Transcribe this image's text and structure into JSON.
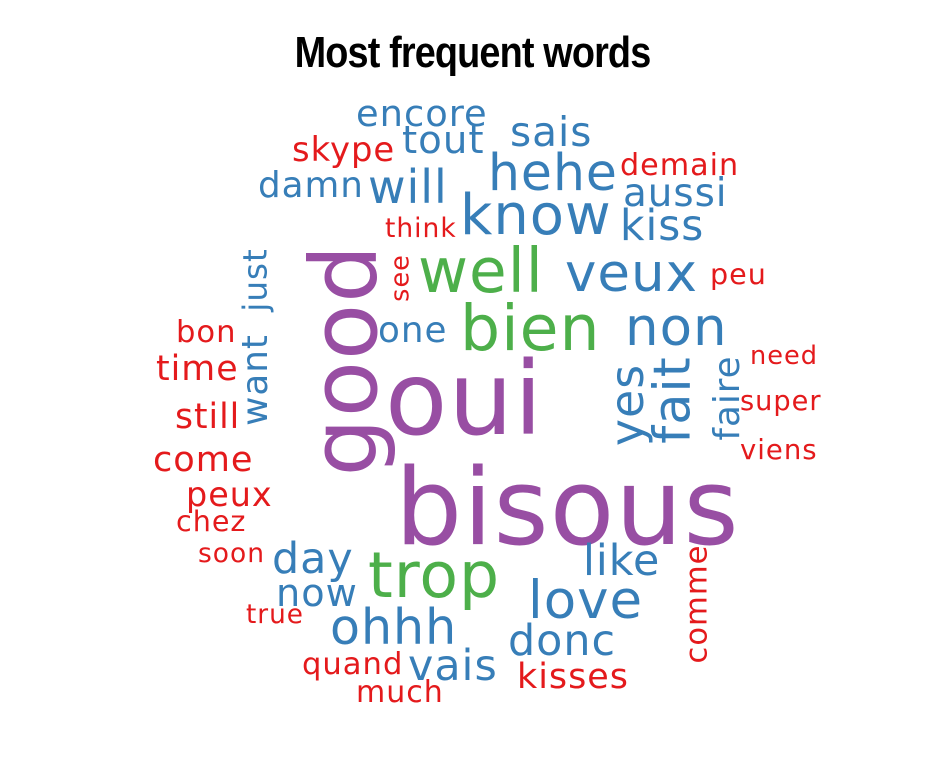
{
  "chart_data": {
    "type": "wordcloud",
    "title": "Most frequent words",
    "colors": {
      "purple": "#984ea3",
      "green": "#4daf4a",
      "blue": "#377eb8",
      "red": "#e41a1c"
    },
    "words": [
      {
        "text": "oui",
        "color": "purple"
      },
      {
        "text": "bisous",
        "color": "purple"
      },
      {
        "text": "good",
        "color": "purple"
      },
      {
        "text": "bien",
        "color": "green"
      },
      {
        "text": "well",
        "color": "green"
      },
      {
        "text": "trop",
        "color": "green"
      },
      {
        "text": "know",
        "color": "blue"
      },
      {
        "text": "veux",
        "color": "blue"
      },
      {
        "text": "non",
        "color": "blue"
      },
      {
        "text": "fait",
        "color": "blue"
      },
      {
        "text": "yes",
        "color": "blue"
      },
      {
        "text": "hehe",
        "color": "blue"
      },
      {
        "text": "love",
        "color": "blue"
      },
      {
        "text": "ohhh",
        "color": "blue"
      },
      {
        "text": "want",
        "color": "blue"
      },
      {
        "text": "faire",
        "color": "blue"
      },
      {
        "text": "will",
        "color": "blue"
      },
      {
        "text": "day",
        "color": "blue"
      },
      {
        "text": "tout",
        "color": "blue"
      },
      {
        "text": "vais",
        "color": "blue"
      },
      {
        "text": "donc",
        "color": "blue"
      },
      {
        "text": "like",
        "color": "blue"
      },
      {
        "text": "just",
        "color": "blue"
      },
      {
        "text": "kiss",
        "color": "blue"
      },
      {
        "text": "sais",
        "color": "blue"
      },
      {
        "text": "aussi",
        "color": "blue"
      },
      {
        "text": "encore",
        "color": "blue"
      },
      {
        "text": "now",
        "color": "blue"
      },
      {
        "text": "damn",
        "color": "blue"
      },
      {
        "text": "one",
        "color": "blue"
      },
      {
        "text": "kisses",
        "color": "red"
      },
      {
        "text": "come",
        "color": "red"
      },
      {
        "text": "comme",
        "color": "red"
      },
      {
        "text": "skype",
        "color": "red"
      },
      {
        "text": "time",
        "color": "red"
      },
      {
        "text": "still",
        "color": "red"
      },
      {
        "text": "peux",
        "color": "red"
      },
      {
        "text": "bon",
        "color": "red"
      },
      {
        "text": "quand",
        "color": "red"
      },
      {
        "text": "demain",
        "color": "red"
      },
      {
        "text": "much",
        "color": "red"
      },
      {
        "text": "chez",
        "color": "red"
      },
      {
        "text": "super",
        "color": "red"
      },
      {
        "text": "viens",
        "color": "red"
      },
      {
        "text": "need",
        "color": "red"
      },
      {
        "text": "peu",
        "color": "red"
      },
      {
        "text": "think",
        "color": "red"
      },
      {
        "text": "see",
        "color": "red"
      },
      {
        "text": "true",
        "color": "red"
      },
      {
        "text": "soon",
        "color": "red"
      }
    ]
  }
}
